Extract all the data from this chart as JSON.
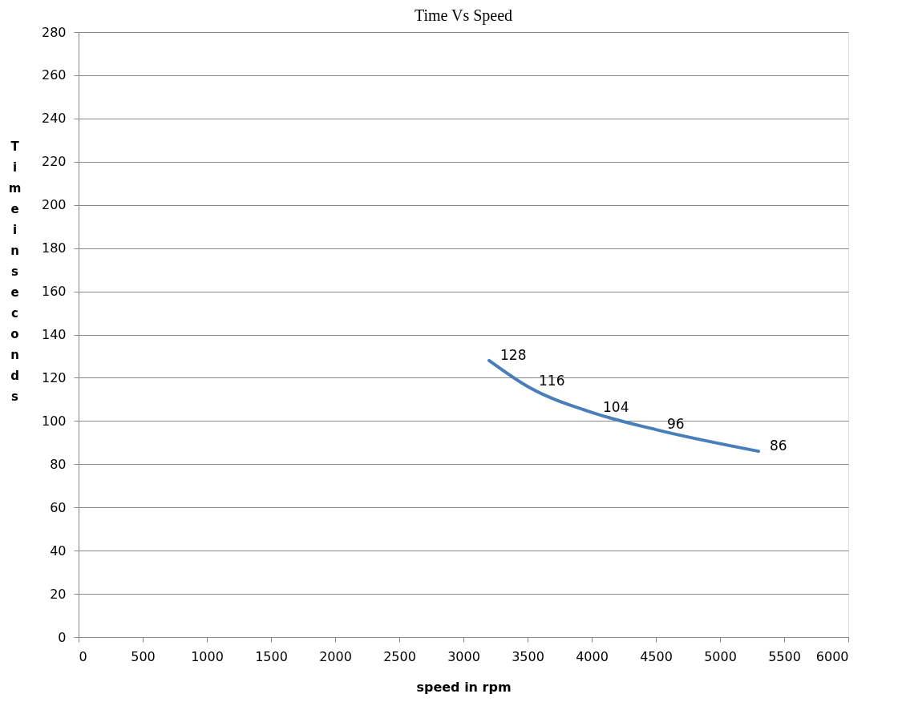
{
  "chart_data": {
    "type": "line",
    "title": "Time Vs Speed",
    "xlabel": "speed in rpm",
    "ylabel": "Time in seconds",
    "x": [
      3200,
      3500,
      4000,
      4500,
      5300
    ],
    "series": [
      {
        "color": "#4a7ebb",
        "values": [
          128,
          116,
          104,
          96,
          86
        ]
      }
    ],
    "xlim": [
      0,
      6000
    ],
    "xticks": [
      0,
      500,
      1000,
      1500,
      2000,
      2500,
      3000,
      3500,
      4000,
      4500,
      5000,
      5500,
      6000
    ],
    "ylim": [
      0,
      280
    ],
    "yticks": [
      0,
      20,
      40,
      60,
      80,
      100,
      120,
      140,
      160,
      180,
      200,
      220,
      240,
      260,
      280
    ],
    "grid": "y",
    "marker": "none",
    "line_style": "solid",
    "data_labels": true
  }
}
